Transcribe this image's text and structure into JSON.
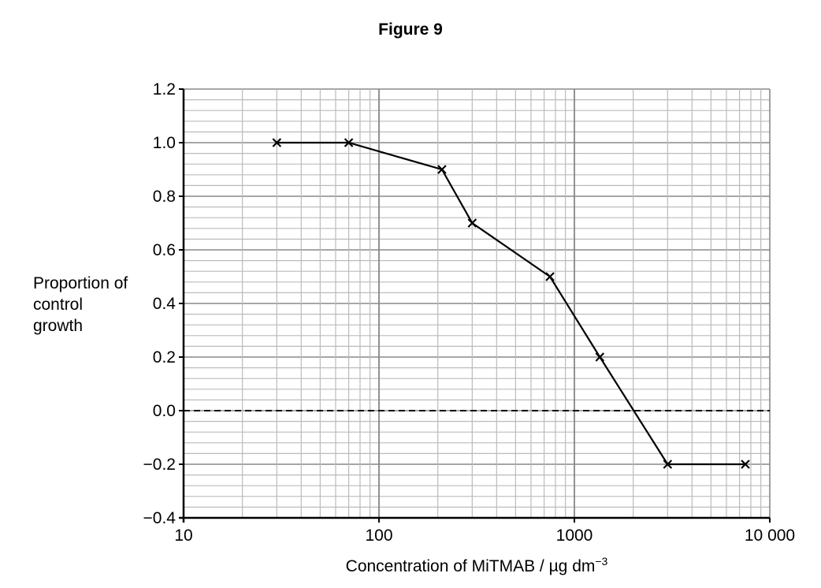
{
  "chart_data": {
    "type": "line",
    "title": "Figure 9",
    "xlabel": "Concentration of MiTMAB / µg dm",
    "xlabel_superscript": "−3",
    "ylabel": "Proportion of control growth",
    "x_scale": "log",
    "xlim": [
      10,
      10000
    ],
    "ylim": [
      -0.4,
      1.2
    ],
    "x_ticks": [
      "10",
      "100",
      "1000",
      "10 000"
    ],
    "y_ticks": [
      "1.2",
      "1.0",
      "0.8",
      "0.6",
      "0.4",
      "0.2",
      "0.0",
      "−0.2",
      "−0.4"
    ],
    "grid": true,
    "marker": "x",
    "reference_line": {
      "y": 0.0,
      "style": "dashed"
    },
    "x": [
      30,
      70,
      210,
      300,
      750,
      1350,
      3000,
      7500
    ],
    "y": [
      1.0,
      1.0,
      0.9,
      0.7,
      0.5,
      0.2,
      -0.2,
      -0.2
    ],
    "colors": {
      "line": "#000000",
      "grid_major": "#888888",
      "grid_minor": "#bbbbbb"
    }
  }
}
